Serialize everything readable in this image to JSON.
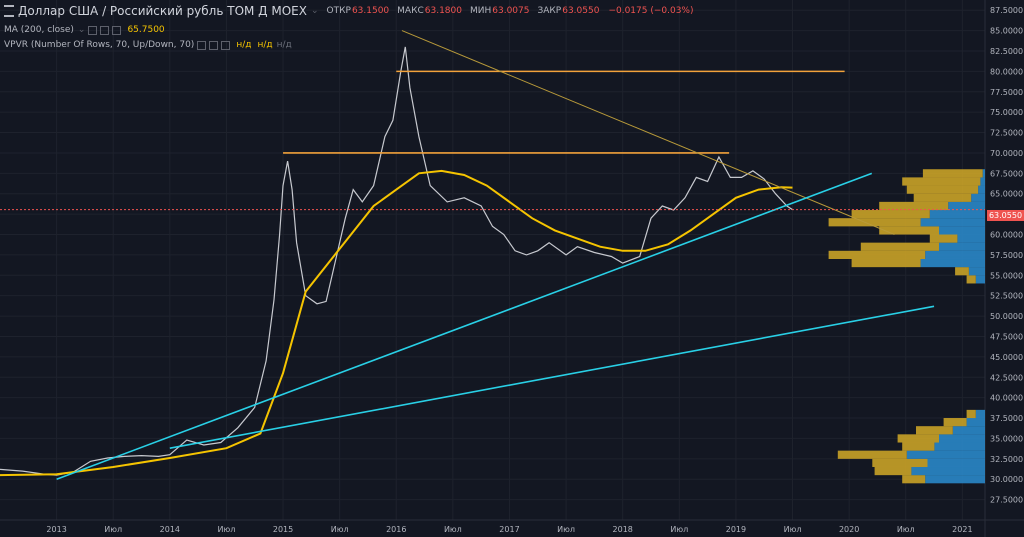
{
  "header": {
    "title": "Доллар США / Российский рубль TOM  Д  MOEX",
    "ohlc": [
      {
        "label": "ОТКР",
        "value": "63.1500"
      },
      {
        "label": "МАКС",
        "value": "63.1800"
      },
      {
        "label": "МИН",
        "value": "63.0075"
      },
      {
        "label": "ЗАКР",
        "value": "63.0550"
      }
    ],
    "change": "−0.0175 (−0.03%)"
  },
  "indicators": {
    "ma_label": "MA (200, close)",
    "ma_value": "65.7500",
    "vpvr_label": "VPVR (Number Of Rows, 70, Up/Down, 70)",
    "vpvr_value1": "н/д",
    "vpvr_value2": "н/д",
    "vpvr_value3": "н/д"
  },
  "last_price_badge": "63.0550",
  "colors": {
    "background": "#131722",
    "price_line": "#c7c9cf",
    "ma_line": "#f5c400",
    "trend_cyan": "#29d0e6",
    "resistance_orange": "#f2a23b",
    "vp_up": "#2a87c8",
    "vp_down": "#c9a227",
    "last_price": "#ef5350"
  },
  "chart_data": {
    "type": "line",
    "title": "Доллар США / Российский рубль TOM",
    "xlabel": "",
    "ylabel": "",
    "grid": true,
    "x_tick_labels": [
      "2013",
      "Июл",
      "2014",
      "Июл",
      "2015",
      "Июл",
      "2016",
      "Июл",
      "2017",
      "Июл",
      "2018",
      "Июл",
      "2019",
      "Июл",
      "2020",
      "Июл",
      "2021"
    ],
    "y_tick_labels": [
      "87.5000",
      "85.0000",
      "82.5000",
      "80.0000",
      "77.5000",
      "75.0000",
      "72.5000",
      "70.0000",
      "67.5000",
      "65.0000",
      "62.5000",
      "60.0000",
      "57.5000",
      "55.0000",
      "52.5000",
      "50.0000",
      "47.5000",
      "45.0000",
      "42.5000",
      "40.0000",
      "37.5000",
      "35.0000",
      "32.5000",
      "30.0000",
      "27.5000",
      "25.0000"
    ],
    "ylim": [
      25,
      88.75
    ],
    "xlim": [
      2012.5,
      2021.2
    ],
    "series": [
      {
        "key": "price",
        "x": [
          2012.5,
          2012.7,
          2012.9,
          2013.0,
          2013.15,
          2013.3,
          2013.45,
          2013.6,
          2013.75,
          2013.9,
          2014.0,
          2014.15,
          2014.3,
          2014.45,
          2014.6,
          2014.75,
          2014.85,
          2014.92,
          2014.97,
          2015.0,
          2015.04,
          2015.08,
          2015.12,
          2015.2,
          2015.3,
          2015.38,
          2015.45,
          2015.55,
          2015.62,
          2015.7,
          2015.8,
          2015.9,
          2015.97,
          2016.04,
          2016.08,
          2016.12,
          2016.2,
          2016.3,
          2016.45,
          2016.6,
          2016.75,
          2016.85,
          2016.95,
          2017.05,
          2017.15,
          2017.25,
          2017.35,
          2017.5,
          2017.6,
          2017.75,
          2017.9,
          2018.0,
          2018.15,
          2018.25,
          2018.35,
          2018.45,
          2018.55,
          2018.65,
          2018.75,
          2018.85,
          2018.95,
          2019.05,
          2019.15,
          2019.25,
          2019.35,
          2019.45,
          2019.5
        ],
        "y": [
          31.2,
          31.0,
          30.6,
          30.5,
          30.9,
          32.2,
          32.6,
          32.8,
          32.9,
          32.8,
          33.0,
          34.8,
          34.2,
          34.5,
          36.3,
          38.8,
          44.5,
          52.0,
          60.0,
          66.0,
          69.0,
          65.5,
          59.0,
          52.5,
          51.5,
          51.8,
          56.0,
          62.0,
          65.5,
          64.0,
          66.0,
          72.0,
          74.0,
          80.0,
          83.0,
          78.0,
          72.0,
          66.0,
          64.0,
          64.5,
          63.5,
          61.0,
          60.0,
          58.0,
          57.5,
          58.0,
          59.0,
          57.5,
          58.5,
          57.8,
          57.3,
          56.5,
          57.3,
          62.0,
          63.5,
          63.0,
          64.5,
          67.0,
          66.5,
          69.5,
          67.0,
          67.0,
          67.8,
          66.8,
          65.0,
          63.5,
          63.05
        ]
      },
      {
        "key": "ma200",
        "x": [
          2012.5,
          2013.0,
          2013.5,
          2014.0,
          2014.5,
          2014.8,
          2015.0,
          2015.2,
          2015.4,
          2015.6,
          2015.8,
          2016.0,
          2016.2,
          2016.4,
          2016.6,
          2016.8,
          2017.0,
          2017.2,
          2017.4,
          2017.6,
          2017.8,
          2018.0,
          2018.2,
          2018.4,
          2018.6,
          2018.8,
          2019.0,
          2019.2,
          2019.4,
          2019.5
        ],
        "y": [
          30.5,
          30.6,
          31.5,
          32.6,
          33.8,
          35.6,
          43.0,
          53.0,
          56.5,
          60.0,
          63.5,
          65.5,
          67.5,
          67.8,
          67.3,
          66.0,
          64.0,
          62.0,
          60.5,
          59.5,
          58.5,
          58.0,
          58.0,
          58.8,
          60.5,
          62.5,
          64.5,
          65.5,
          65.8,
          65.75
        ]
      }
    ],
    "annotation_lines": [
      {
        "kind": "resistance",
        "x": [
          2015.0,
          2018.94
        ],
        "y": [
          70.0,
          70.0
        ]
      },
      {
        "kind": "resistance",
        "x": [
          2016.0,
          2019.96
        ],
        "y": [
          80.0,
          80.0
        ]
      },
      {
        "kind": "trend_down",
        "x": [
          2016.05,
          2020.4
        ],
        "y": [
          85.0,
          60.0
        ]
      },
      {
        "kind": "trend_up",
        "x": [
          2013.0,
          2020.2
        ],
        "y": [
          30.0,
          67.5
        ]
      },
      {
        "kind": "trend_up",
        "x": [
          2014.0,
          2020.75
        ],
        "y": [
          33.8,
          51.2
        ]
      }
    ],
    "volume_profile": {
      "price_levels": [
        30.0,
        31.0,
        32.0,
        33.0,
        34.0,
        35.0,
        36.0,
        37.0,
        38.0,
        54.5,
        55.5,
        56.5,
        57.5,
        58.5,
        59.5,
        60.5,
        61.5,
        62.5,
        63.5,
        64.5,
        65.5,
        66.5,
        67.5
      ],
      "up": [
        0.26,
        0.32,
        0.25,
        0.34,
        0.22,
        0.2,
        0.14,
        0.08,
        0.04,
        0.04,
        0.07,
        0.28,
        0.26,
        0.2,
        0.12,
        0.2,
        0.28,
        0.24,
        0.16,
        0.06,
        0.03,
        0.02,
        0.01
      ],
      "down": [
        0.1,
        0.16,
        0.24,
        0.3,
        0.14,
        0.18,
        0.16,
        0.1,
        0.04,
        0.04,
        0.06,
        0.3,
        0.42,
        0.34,
        0.12,
        0.26,
        0.4,
        0.34,
        0.3,
        0.25,
        0.31,
        0.34,
        0.26
      ]
    }
  }
}
